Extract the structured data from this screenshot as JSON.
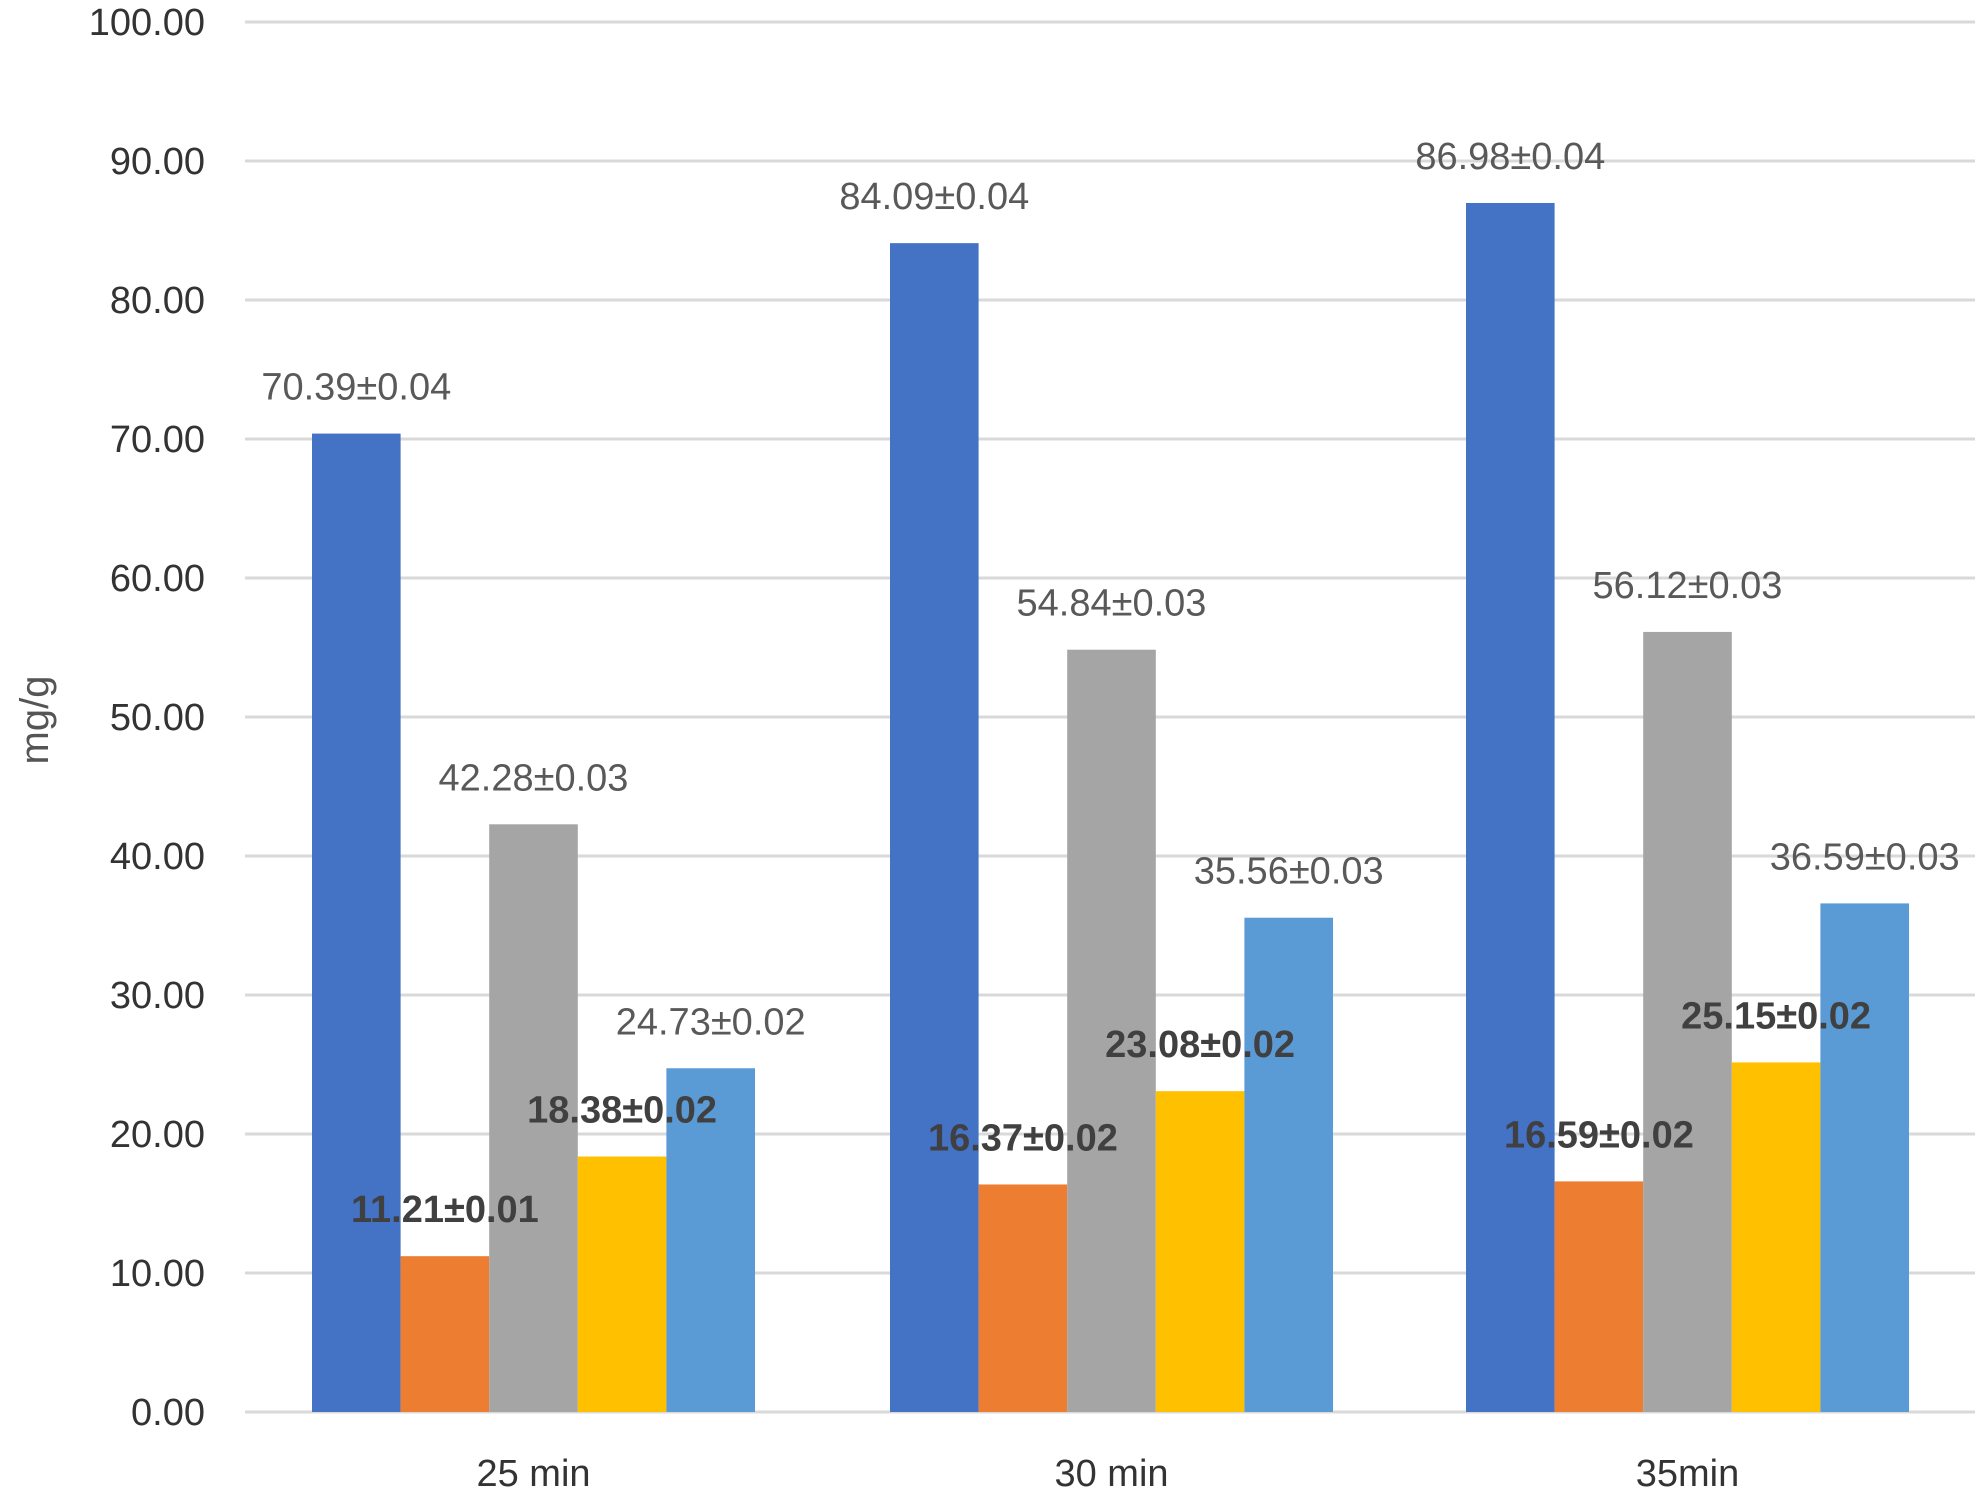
{
  "chart_data": {
    "type": "bar",
    "title": "",
    "xlabel": "",
    "ylabel": "mg/g",
    "ylim": [
      0,
      100
    ],
    "ytick_step": 10,
    "ytick_labels": [
      "0.00",
      "10.00",
      "20.00",
      "30.00",
      "40.00",
      "50.00",
      "60.00",
      "70.00",
      "80.00",
      "90.00",
      "100.00"
    ],
    "grid": true,
    "legend": "none",
    "categories": [
      "25 min",
      "30 min",
      "35min"
    ],
    "series": [
      {
        "color": "#4472c4",
        "values": [
          70.39,
          84.09,
          86.98
        ],
        "labels": [
          "70.39±0.04",
          "84.09±0.04",
          "86.98±0.04"
        ],
        "label_bold": false
      },
      {
        "color": "#ed7d31",
        "values": [
          11.21,
          16.37,
          16.59
        ],
        "labels": [
          "11.21±0.01",
          "16.37±0.02",
          "16.59±0.02"
        ],
        "label_bold": true
      },
      {
        "color": "#a5a5a5",
        "values": [
          42.28,
          54.84,
          56.12
        ],
        "labels": [
          "42.28±0.03",
          "54.84±0.03",
          "56.12±0.03"
        ],
        "label_bold": false
      },
      {
        "color": "#ffc000",
        "values": [
          18.38,
          23.08,
          25.15
        ],
        "labels": [
          "18.38±0.02",
          "23.08±0.02",
          "25.15±0.02"
        ],
        "label_bold": true
      },
      {
        "color": "#5b9bd5",
        "values": [
          24.73,
          35.56,
          36.59
        ],
        "labels": [
          "24.73±0.02",
          "35.56±0.03",
          "36.59±0.03"
        ],
        "label_bold": false
      }
    ]
  }
}
